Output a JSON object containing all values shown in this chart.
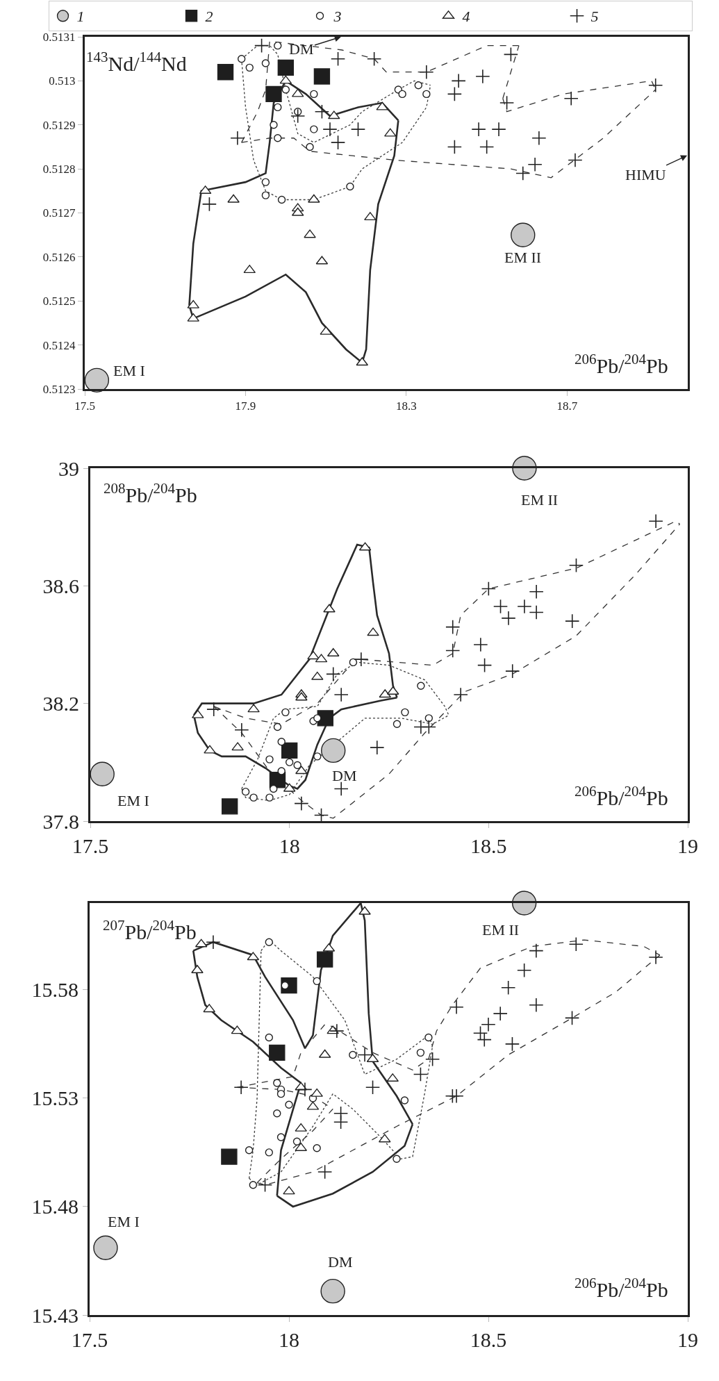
{
  "chart_data": [
    {
      "type": "scatter",
      "xlabel": "$^{206}$Pb/$^{204}$Pb",
      "ylabel": "$^{143}$Nd/$^{144}$Nd",
      "xlim": [
        17.5,
        19.0
      ],
      "ylim": [
        0.5123,
        0.5131
      ],
      "xticks": [
        17.5,
        17.9,
        18.3,
        18.7
      ],
      "yticks": [
        0.5123,
        0.5124,
        0.5125,
        0.5126,
        0.5127,
        0.5128,
        0.5129,
        0.513,
        0.5131
      ],
      "grid": false,
      "legend": "top",
      "annotations": [
        {
          "text": "EM I",
          "x": 17.53,
          "y": 0.51232
        },
        {
          "text": "EM II",
          "x": 18.59,
          "y": 0.51265
        },
        "DM",
        "HIMU"
      ],
      "series": [
        {
          "name": "1",
          "color": "#c8c8c8",
          "marker": "circle",
          "x": [
            17.53,
            18.59
          ],
          "values": [
            0.51232,
            0.51265
          ]
        },
        {
          "name": "2",
          "color": "#1e1e1e",
          "marker": "square",
          "x": [
            17.85,
            18.0,
            17.97,
            18.09
          ],
          "values": [
            0.51302,
            0.51303,
            0.51297,
            0.51301
          ]
        },
        {
          "name": "3",
          "color": "#ffffff",
          "marker": "circle",
          "x": [
            17.98,
            17.89,
            17.91,
            17.95,
            18.0,
            18.07,
            17.98,
            17.97,
            17.98,
            18.03,
            18.07,
            18.06,
            17.95,
            17.95,
            17.99,
            18.16,
            18.28,
            18.29,
            18.33,
            18.35
          ],
          "values": [
            0.51308,
            0.51305,
            0.51303,
            0.51304,
            0.51298,
            0.51297,
            0.51294,
            0.5129,
            0.51287,
            0.51293,
            0.51289,
            0.51285,
            0.51277,
            0.51274,
            0.51273,
            0.51276,
            0.51298,
            0.51297,
            0.51299,
            0.51297
          ]
        },
        {
          "name": "4",
          "color": "#ffffff",
          "marker": "triangle",
          "x": [
            18.0,
            18.03,
            18.12,
            17.8,
            17.87,
            18.07,
            18.03,
            18.03,
            18.06,
            18.09,
            18.21,
            17.91,
            17.77,
            17.77,
            18.1,
            18.19,
            18.24,
            18.26
          ],
          "values": [
            0.513,
            0.51297,
            0.51292,
            0.51275,
            0.51273,
            0.51273,
            0.51271,
            0.5127,
            0.51265,
            0.51259,
            0.51269,
            0.51257,
            0.51249,
            0.51246,
            0.51243,
            0.51236,
            0.51294,
            0.51288
          ]
        },
        {
          "name": "5",
          "color": "#222222",
          "marker": "cross",
          "x": [
            17.94,
            18.13,
            18.22,
            18.03,
            18.09,
            18.11,
            18.18,
            18.13,
            17.88,
            17.81,
            18.35,
            18.43,
            18.49,
            18.42,
            18.56,
            18.55,
            18.71,
            18.92,
            18.48,
            18.53,
            18.63,
            18.42,
            18.5,
            18.62,
            18.59,
            18.72
          ],
          "values": [
            0.51308,
            0.51305,
            0.51305,
            0.51292,
            0.51293,
            0.51289,
            0.51289,
            0.51286,
            0.51287,
            0.51272,
            0.51302,
            0.513,
            0.51301,
            0.51297,
            0.51306,
            0.51295,
            0.51296,
            0.51299,
            0.51289,
            0.51289,
            0.51287,
            0.51285,
            0.51285,
            0.51281,
            0.51279,
            0.51282
          ]
        },
        {
          "type": "line",
          "color": "#2a2a2a",
          "line_style": "solid",
          "marker": "none",
          "x": [
            18.0,
            18.05,
            18.11,
            18.18,
            18.24,
            18.28
          ],
          "values": [
            0.513,
            0.51297,
            0.51292,
            0.51294,
            0.51295,
            0.51291
          ]
        },
        {
          "type": "line",
          "color": "#2a2a2a",
          "line_style": "solid",
          "marker": "none",
          "x": [
            17.76,
            17.77,
            17.9,
            18.0,
            18.05,
            18.09,
            18.15,
            18.19,
            18.2,
            18.21,
            18.23,
            18.27,
            18.28
          ],
          "values": [
            0.51249,
            0.51246,
            0.51251,
            0.51256,
            0.51252,
            0.51245,
            0.51239,
            0.51236,
            0.51239,
            0.51257,
            0.51272,
            0.51283,
            0.51291
          ]
        },
        {
          "type": "line",
          "color": "#2a2a2a",
          "line_style": "solid",
          "marker": "none",
          "x": [
            17.76,
            17.77,
            17.79,
            17.9,
            17.95,
            17.96,
            17.97,
            18.0
          ],
          "values": [
            0.51249,
            0.51263,
            0.51275,
            0.51277,
            0.51279,
            0.51286,
            0.51295,
            0.513
          ]
        },
        {
          "type": "line",
          "color": "#333333",
          "line_style": "dashed",
          "marker": "none",
          "x": [
            17.89,
            17.93,
            17.95,
            17.96,
            18.14,
            18.22,
            18.25,
            18.35,
            18.5,
            18.58
          ],
          "values": [
            0.51286,
            0.51293,
            0.51298,
            0.51309,
            0.51307,
            0.51305,
            0.51302,
            0.51302,
            0.51308,
            0.51308
          ]
        },
        {
          "type": "line",
          "color": "#333333",
          "line_style": "dashed",
          "marker": "none",
          "x": [
            18.54,
            18.58
          ],
          "values": [
            0.51296,
            0.51308
          ]
        },
        {
          "type": "line",
          "color": "#333333",
          "line_style": "dashed",
          "marker": "none",
          "x": [
            18.54,
            18.55,
            18.69,
            18.91,
            18.92
          ],
          "values": [
            0.51296,
            0.51293,
            0.51297,
            0.513,
            0.51298
          ]
        },
        {
          "type": "line",
          "color": "#333333",
          "line_style": "dashed",
          "marker": "none",
          "x": [
            17.89,
            17.96,
            18.02,
            18.06,
            18.27,
            18.56,
            18.66,
            18.79,
            18.92
          ],
          "values": [
            0.51286,
            0.51287,
            0.51287,
            0.51284,
            0.51282,
            0.5128,
            0.51278,
            0.51287,
            0.51298
          ]
        },
        {
          "type": "line",
          "color": "#3c3c3c",
          "line_style": "dotted",
          "marker": "none",
          "x": [
            17.89,
            17.9,
            17.92,
            17.95,
            17.99,
            18.07,
            18.16,
            18.19,
            18.29,
            18.35,
            18.36
          ],
          "values": [
            0.51305,
            0.51294,
            0.51282,
            0.51275,
            0.51273,
            0.51273,
            0.51276,
            0.5128,
            0.51286,
            0.51294,
            0.51299
          ]
        },
        {
          "type": "line",
          "color": "#3c3c3c",
          "line_style": "dotted",
          "marker": "none",
          "x": [
            17.89,
            17.93,
            17.96,
            17.98,
            18.0,
            18.03,
            18.07,
            18.16,
            18.19,
            18.28,
            18.32,
            18.36
          ],
          "values": [
            0.51305,
            0.51308,
            0.51308,
            0.51306,
            0.51298,
            0.51288,
            0.51286,
            0.5129,
            0.51293,
            0.51298,
            0.513,
            0.51299
          ]
        }
      ]
    },
    {
      "type": "scatter",
      "xlabel": "$^{206}$Pb/$^{204}$Pb",
      "ylabel": "$^{208}$Pb/$^{204}$Pb",
      "xlim": [
        17.5,
        19
      ],
      "ylim": [
        37.8,
        39
      ],
      "xticks": [
        17.5,
        18,
        18.5,
        19
      ],
      "yticks": [
        37.8,
        38.2,
        38.6,
        39
      ],
      "grid": false,
      "annotations": [
        {
          "text": "EM I",
          "x": 17.53,
          "y": 37.96
        },
        {
          "text": "EM II",
          "x": 18.59,
          "y": 39.0
        },
        {
          "text": "DM",
          "x": 18.11,
          "y": 38.04
        }
      ],
      "series": [
        {
          "color": "#c8c8c8",
          "marker": "circle",
          "x": [
            17.53,
            18.59,
            18.11
          ],
          "values": [
            37.96,
            39.0,
            38.04
          ]
        },
        {
          "color": "#1e1e1e",
          "marker": "square",
          "x": [
            18.09,
            18.0,
            17.97,
            17.85
          ],
          "values": [
            38.15,
            38.04,
            37.94,
            37.85
          ]
        },
        {
          "color": "#ffffff",
          "marker": "circle",
          "x": [
            18.16,
            17.99,
            17.97,
            18.06,
            18.07,
            17.98,
            17.95,
            18.0,
            18.02,
            18.07,
            17.98,
            17.96,
            17.89,
            17.91,
            17.95,
            18.33,
            18.29,
            18.35,
            18.27
          ],
          "values": [
            38.34,
            38.17,
            38.12,
            38.14,
            38.15,
            38.07,
            38.01,
            38.0,
            37.99,
            38.02,
            37.97,
            37.91,
            37.9,
            37.88,
            37.88,
            38.26,
            38.17,
            38.15,
            38.13
          ]
        },
        {
          "color": "#ffffff",
          "marker": "triangle",
          "x": [
            18.19,
            18.1,
            18.21,
            18.06,
            18.08,
            18.11,
            18.07,
            18.03,
            18.03,
            18.24,
            17.91,
            17.77,
            17.8,
            17.87,
            18.03,
            18.0,
            18.26
          ],
          "values": [
            38.73,
            38.52,
            38.44,
            38.36,
            38.35,
            38.37,
            38.29,
            38.23,
            38.22,
            38.23,
            38.18,
            38.16,
            38.04,
            38.05,
            37.97,
            37.91,
            38.24
          ]
        },
        {
          "color": "#222222",
          "marker": "cross",
          "x": [
            17.81,
            17.88,
            18.11,
            18.13,
            18.18,
            18.22,
            18.13,
            18.03,
            18.08,
            18.92,
            18.72,
            18.5,
            18.62,
            18.53,
            18.59,
            18.62,
            18.55,
            18.71,
            18.41,
            18.48,
            18.41,
            18.49,
            18.56,
            18.43,
            18.33,
            18.35
          ],
          "values": [
            38.18,
            38.11,
            38.3,
            38.23,
            38.35,
            38.05,
            37.91,
            37.86,
            37.82,
            38.82,
            38.67,
            38.59,
            38.58,
            38.53,
            38.53,
            38.51,
            38.49,
            38.48,
            38.46,
            38.4,
            38.38,
            38.33,
            38.31,
            38.23,
            38.12,
            38.12
          ]
        },
        {
          "type": "line",
          "color": "#2a2a2a",
          "line_style": "solid",
          "marker": "none",
          "x": [
            17.76,
            17.78,
            17.91,
            17.98,
            18.05,
            18.12,
            18.17,
            18.2,
            18.21,
            18.22,
            18.25,
            18.26,
            18.27
          ],
          "values": [
            38.16,
            38.2,
            38.2,
            38.23,
            38.35,
            38.59,
            38.74,
            38.73,
            38.61,
            38.5,
            38.37,
            38.26,
            38.22
          ]
        },
        {
          "type": "line",
          "color": "#2a2a2a",
          "line_style": "solid",
          "marker": "none",
          "x": [
            17.76,
            17.77,
            17.8,
            17.83,
            17.89,
            17.94,
            18.0,
            18.02,
            18.04,
            18.07,
            18.1,
            18.13,
            18.23,
            18.27
          ],
          "values": [
            38.16,
            38.1,
            38.04,
            38.02,
            38.02,
            37.98,
            37.92,
            37.91,
            37.94,
            38.06,
            38.15,
            38.18,
            38.21,
            38.22
          ]
        },
        {
          "type": "line",
          "color": "#333333",
          "line_style": "dashed",
          "marker": "none",
          "x": [
            17.81,
            17.89,
            17.98,
            18.07,
            18.14,
            18.18,
            18.36,
            18.41,
            18.43,
            18.5,
            18.72,
            18.97,
            18.98
          ],
          "values": [
            38.19,
            38.15,
            38.13,
            38.2,
            38.31,
            38.35,
            38.33,
            38.37,
            38.5,
            38.59,
            38.66,
            38.82,
            38.81
          ]
        },
        {
          "type": "line",
          "color": "#333333",
          "line_style": "dashed",
          "marker": "none",
          "x": [
            17.81,
            17.88,
            17.95,
            18.03,
            18.08,
            18.11,
            18.25,
            18.34,
            18.44,
            18.56,
            18.72,
            18.87,
            18.98
          ],
          "values": [
            38.19,
            38.1,
            37.97,
            37.87,
            37.82,
            37.81,
            37.96,
            38.1,
            38.24,
            38.3,
            38.43,
            38.64,
            38.81
          ]
        },
        {
          "type": "line",
          "color": "#3c3c3c",
          "line_style": "dotted",
          "marker": "none",
          "x": [
            17.88,
            17.92,
            17.96,
            17.99,
            18.07,
            18.12,
            18.17,
            18.25,
            18.34,
            18.39,
            18.4
          ],
          "values": [
            37.91,
            38.01,
            38.15,
            38.18,
            38.19,
            38.3,
            38.34,
            38.33,
            38.28,
            38.19,
            38.16
          ]
        },
        {
          "type": "line",
          "color": "#3c3c3c",
          "line_style": "dotted",
          "marker": "none",
          "x": [
            17.88,
            17.89,
            17.95,
            18.0,
            18.05,
            18.19,
            18.28,
            18.36,
            18.4
          ],
          "values": [
            37.91,
            37.88,
            37.87,
            37.89,
            37.99,
            38.15,
            38.15,
            38.13,
            38.16
          ]
        }
      ]
    },
    {
      "type": "scatter",
      "xlabel": "$^{206}$Pb/$^{204}$Pb",
      "ylabel": "$^{207}$Pb/$^{204}$Pb",
      "xlim": [
        17.5,
        19
      ],
      "ylim": [
        15.43,
        15.62
      ],
      "xticks": [
        17.5,
        18,
        18.5,
        19
      ],
      "yticks": [
        15.43,
        15.48,
        15.53,
        15.58
      ],
      "grid": false,
      "annotations": [
        {
          "text": "EM I",
          "x": 17.54,
          "y": 15.461
        },
        {
          "text": "DM",
          "x": 18.11,
          "y": 15.441
        },
        {
          "text": "EM II",
          "x": 18.59,
          "y": 15.62
        }
      ],
      "series": [
        {
          "color": "#c8c8c8",
          "marker": "circle",
          "x": [
            17.54,
            18.11,
            18.59
          ],
          "values": [
            15.461,
            15.441,
            15.62
          ]
        },
        {
          "color": "#1e1e1e",
          "marker": "square",
          "x": [
            18.09,
            18.0,
            17.97,
            17.85
          ],
          "values": [
            15.594,
            15.582,
            15.551,
            15.503
          ]
        },
        {
          "color": "#ffffff",
          "marker": "circle",
          "x": [
            17.95,
            17.99,
            18.07,
            17.95,
            17.97,
            17.98,
            17.98,
            18.0,
            17.97,
            18.06,
            17.98,
            18.02,
            18.07,
            17.9,
            17.95,
            17.91,
            18.16,
            18.35,
            18.33,
            18.29,
            18.27
          ],
          "values": [
            15.602,
            15.582,
            15.584,
            15.558,
            15.537,
            15.534,
            15.532,
            15.527,
            15.523,
            15.53,
            15.512,
            15.51,
            15.507,
            15.506,
            15.505,
            15.49,
            15.55,
            15.558,
            15.551,
            15.529,
            15.502
          ]
        },
        {
          "color": "#ffffff",
          "marker": "triangle",
          "x": [
            17.78,
            17.77,
            17.8,
            17.87,
            17.91,
            18.1,
            18.19,
            18.11,
            18.09,
            18.03,
            18.07,
            18.06,
            18.03,
            18.03,
            18.0,
            18.21,
            18.26,
            18.24
          ],
          "values": [
            15.601,
            15.589,
            15.571,
            15.561,
            15.595,
            15.599,
            15.616,
            15.561,
            15.55,
            15.535,
            15.532,
            15.526,
            15.516,
            15.507,
            15.487,
            15.548,
            15.539,
            15.511
          ]
        },
        {
          "color": "#222222",
          "marker": "cross",
          "x": [
            17.81,
            17.88,
            18.04,
            18.12,
            18.19,
            18.13,
            18.13,
            18.09,
            17.94,
            18.21,
            18.33,
            18.36,
            18.42,
            18.41,
            18.42,
            18.48,
            18.49,
            18.5,
            18.53,
            18.55,
            18.56,
            18.59,
            18.62,
            18.62,
            18.71,
            18.72,
            18.92
          ],
          "values": [
            15.602,
            15.535,
            15.534,
            15.561,
            15.55,
            15.523,
            15.519,
            15.496,
            15.49,
            15.535,
            15.541,
            15.548,
            15.572,
            15.531,
            15.531,
            15.56,
            15.557,
            15.564,
            15.569,
            15.581,
            15.555,
            15.589,
            15.598,
            15.573,
            15.567,
            15.601,
            15.595
          ]
        },
        {
          "type": "line",
          "color": "#2a2a2a",
          "line_style": "solid",
          "marker": "none",
          "x": [
            17.76,
            17.81,
            17.91,
            17.94,
            18.01,
            18.04,
            18.06,
            18.08,
            18.11,
            18.18,
            18.19,
            18.2,
            18.21,
            18.27,
            18.31
          ],
          "values": [
            15.598,
            15.602,
            15.596,
            15.586,
            15.566,
            15.553,
            15.559,
            15.589,
            15.605,
            15.62,
            15.612,
            15.569,
            15.547,
            15.531,
            15.518
          ]
        },
        {
          "type": "line",
          "color": "#2a2a2a",
          "line_style": "solid",
          "marker": "none",
          "x": [
            17.97,
            18.01,
            18.11,
            18.21,
            18.29,
            18.31
          ],
          "values": [
            15.485,
            15.48,
            15.486,
            15.496,
            15.508,
            15.518
          ]
        },
        {
          "type": "line",
          "color": "#2a2a2a",
          "line_style": "solid",
          "marker": "none",
          "x": [
            17.97,
            17.98,
            18.02,
            18.03
          ],
          "values": [
            15.485,
            15.506,
            15.531,
            15.537
          ]
        },
        {
          "type": "line",
          "color": "#2a2a2a",
          "line_style": "solid",
          "marker": "none",
          "x": [
            17.76,
            17.77,
            17.79,
            17.83,
            17.91,
            17.98,
            18.03
          ],
          "values": [
            15.598,
            15.586,
            15.573,
            15.566,
            15.556,
            15.544,
            15.537
          ]
        },
        {
          "type": "line",
          "color": "#333333",
          "line_style": "dashed",
          "marker": "none",
          "x": [
            17.87,
            17.98,
            18.06,
            18.11
          ],
          "values": [
            15.535,
            15.534,
            15.531,
            15.525
          ]
        },
        {
          "type": "line",
          "color": "#333333",
          "line_style": "dashed",
          "marker": "none",
          "x": [
            17.92,
            17.98,
            18.06,
            18.11
          ],
          "values": [
            15.491,
            15.502,
            15.515,
            15.525
          ]
        },
        {
          "type": "line",
          "color": "#333333",
          "line_style": "dashed",
          "marker": "none",
          "x": [
            17.92,
            17.94,
            18.06,
            18.11,
            18.27,
            18.42,
            18.55,
            18.71,
            18.82,
            18.93
          ],
          "values": [
            15.491,
            15.49,
            15.496,
            15.501,
            15.517,
            15.531,
            15.55,
            15.567,
            15.579,
            15.596
          ]
        },
        {
          "type": "line",
          "color": "#333333",
          "line_style": "dashed",
          "marker": "none",
          "x": [
            17.87,
            18.01,
            18.03,
            18.09,
            18.11,
            18.21,
            18.31,
            18.35,
            18.37,
            18.41,
            18.48,
            18.61,
            18.74,
            18.89,
            18.93
          ],
          "values": [
            15.535,
            15.54,
            15.551,
            15.564,
            15.563,
            15.551,
            15.543,
            15.548,
            15.561,
            15.573,
            15.59,
            15.6,
            15.603,
            15.6,
            15.596
          ]
        },
        {
          "type": "line",
          "color": "#3c3c3c",
          "line_style": "dotted",
          "marker": "none",
          "x": [
            17.93,
            17.95,
            17.98,
            18.06,
            18.14,
            18.19,
            18.27,
            18.35,
            18.36
          ],
          "values": [
            15.598,
            15.603,
            15.598,
            15.586,
            15.566,
            15.541,
            15.548,
            15.559,
            15.554
          ]
        },
        {
          "type": "line",
          "color": "#3c3c3c",
          "line_style": "dotted",
          "marker": "none",
          "x": [
            17.9,
            17.92,
            17.98,
            18.06,
            18.11,
            18.16,
            18.23,
            18.28,
            18.31,
            18.34,
            18.36
          ],
          "values": [
            15.493,
            15.49,
            15.496,
            15.517,
            15.532,
            15.525,
            15.512,
            15.502,
            15.503,
            15.532,
            15.554
          ]
        },
        {
          "type": "line",
          "color": "#3c3c3c",
          "line_style": "dotted",
          "marker": "none",
          "x": [
            17.9,
            17.91,
            17.92,
            17.93
          ],
          "values": [
            15.493,
            15.506,
            15.53,
            15.598
          ]
        }
      ]
    }
  ]
}
